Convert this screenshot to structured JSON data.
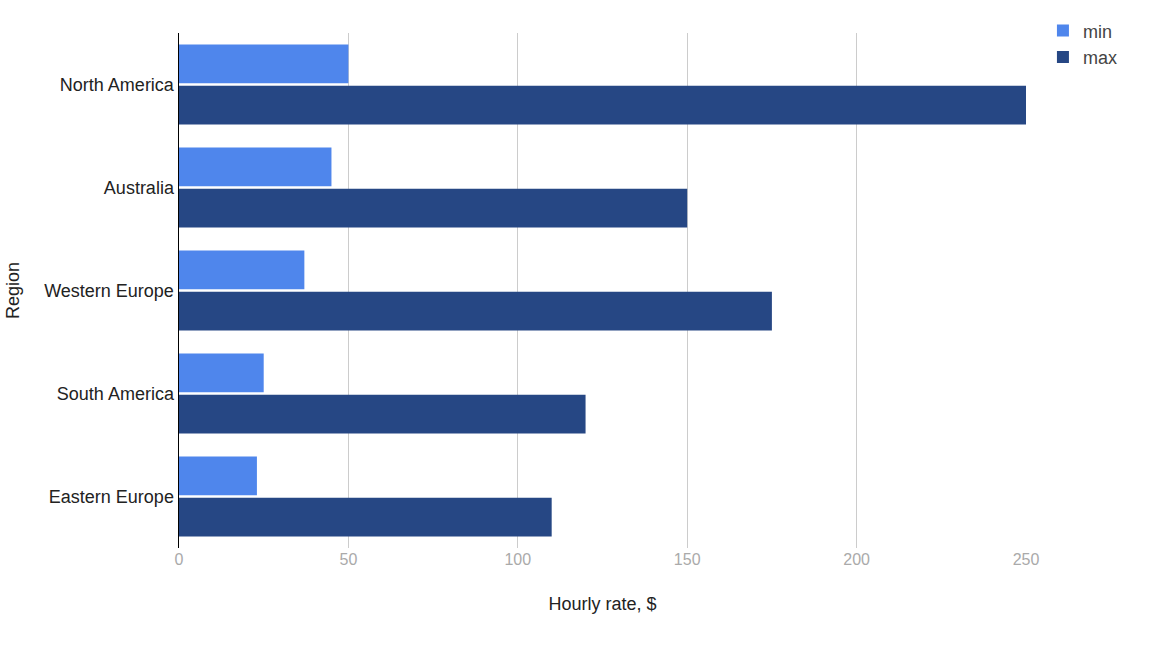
{
  "chart_data": {
    "type": "bar",
    "orientation": "horizontal",
    "x_label": "Hourly rate, $",
    "y_label": "Region",
    "categories": [
      "North America",
      "Australia",
      "Western Europe",
      "South America",
      "Eastern Europe"
    ],
    "series": [
      {
        "name": "min",
        "color": "#4f86ec",
        "values": [
          50,
          45,
          37,
          25,
          23
        ]
      },
      {
        "name": "max",
        "color": "#264784",
        "values": [
          250,
          150,
          175,
          120,
          110
        ]
      }
    ],
    "xlim": [
      0,
      250
    ],
    "xticks": [
      0,
      50,
      100,
      150,
      200,
      250
    ],
    "grid": true,
    "legend": "top-right"
  }
}
